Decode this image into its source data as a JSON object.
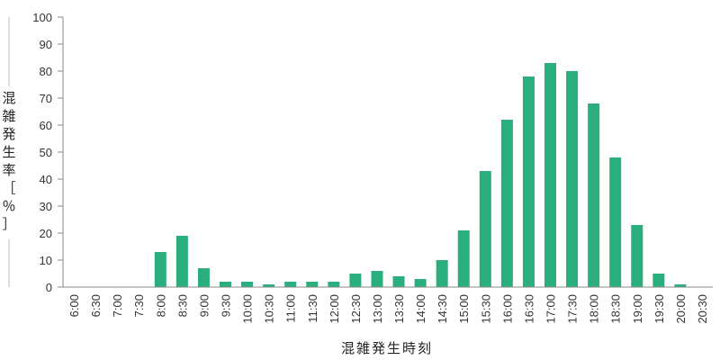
{
  "chart_data": {
    "type": "bar",
    "title": "",
    "xlabel": "混雑発生時刻",
    "ylabel": "混雑発生率［％］",
    "ylim": [
      0,
      100
    ],
    "yticks": [
      "0",
      "10",
      "20",
      "30",
      "40",
      "50",
      "60",
      "70",
      "80",
      "90",
      "100"
    ],
    "grid": false,
    "categories": [
      "6:00",
      "6:30",
      "7:00",
      "7:30",
      "8:00",
      "8:30",
      "9:00",
      "9:30",
      "10:00",
      "10:30",
      "11:00",
      "11:30",
      "12:00",
      "12:30",
      "13:00",
      "13:30",
      "14:00",
      "14:30",
      "15:00",
      "15:30",
      "16:00",
      "16:30",
      "17:00",
      "17:30",
      "18:00",
      "18:30",
      "19:00",
      "19:30",
      "20:00",
      "20:30"
    ],
    "values": [
      0,
      0,
      0,
      0,
      13,
      19,
      7,
      2,
      2,
      1,
      2,
      2,
      2,
      5,
      6,
      4,
      3,
      10,
      21,
      43,
      62,
      78,
      83,
      80,
      68,
      48,
      23,
      5,
      1,
      0
    ],
    "bar_color": "#2bae7e",
    "axis_color": "#888888"
  }
}
